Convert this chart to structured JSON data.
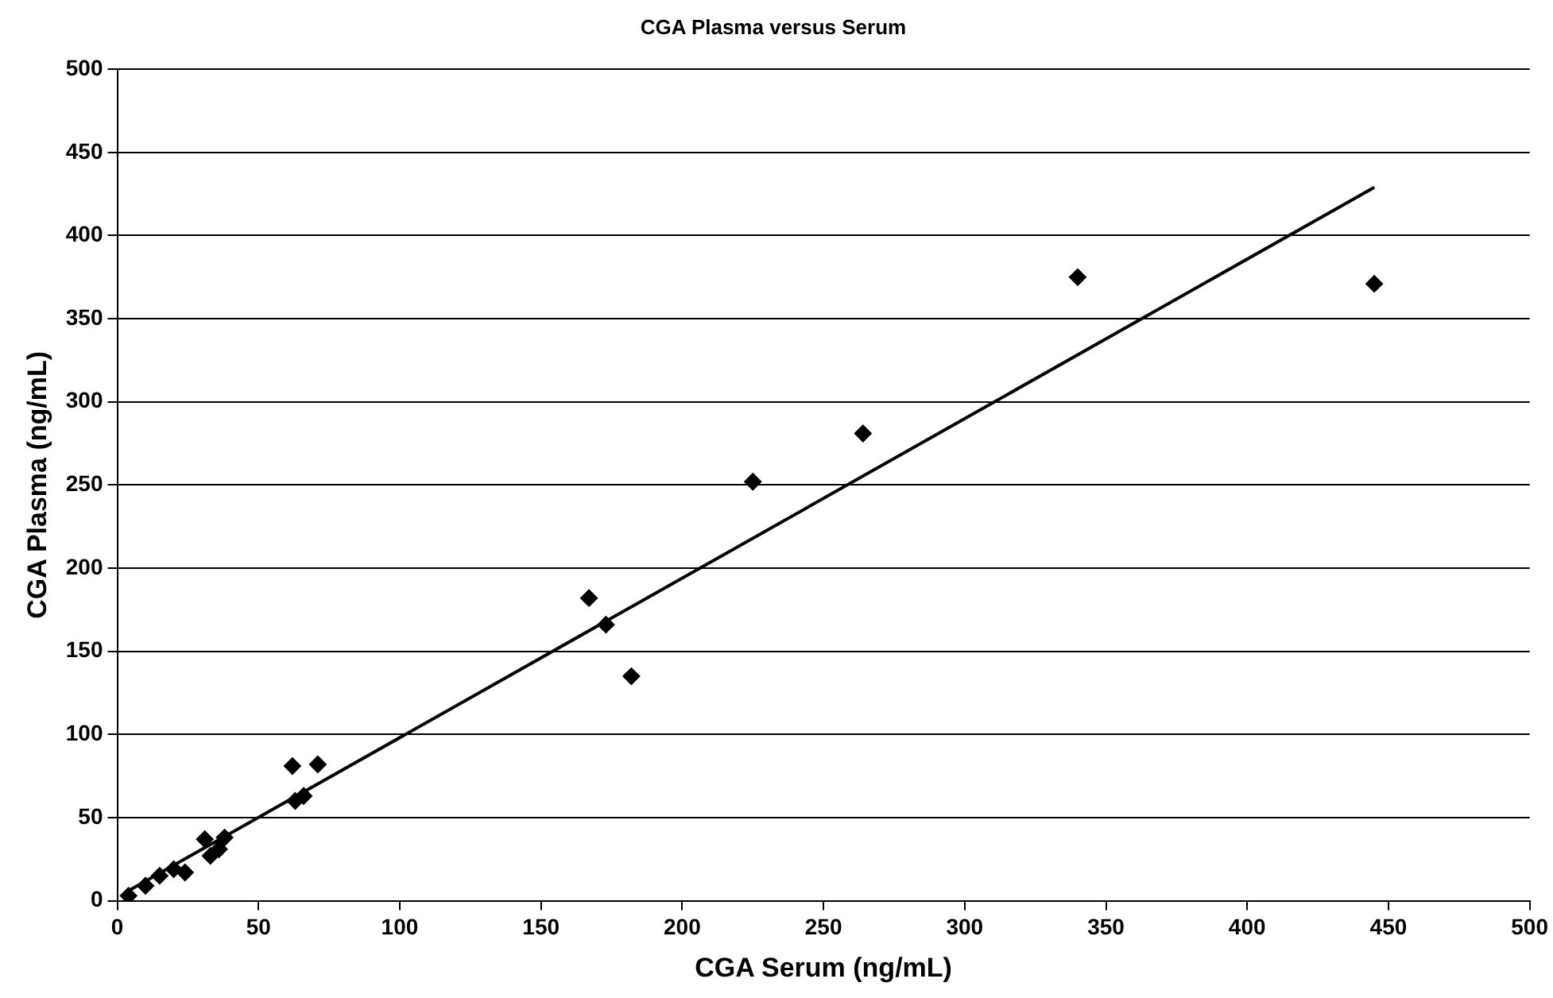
{
  "chart_data": {
    "type": "scatter",
    "title": "CGA Plasma versus Serum",
    "xlabel": "CGA Serum (ng/mL)",
    "ylabel": "CGA Plasma (ng/mL)",
    "xlim": [
      0,
      500
    ],
    "xticks": [
      0,
      50,
      100,
      150,
      200,
      250,
      300,
      350,
      400,
      450,
      500
    ],
    "ylim": [
      0,
      500
    ],
    "yticks": [
      0,
      50,
      100,
      150,
      200,
      250,
      300,
      350,
      400,
      450,
      500
    ],
    "grid": "y",
    "legend": false,
    "marker": "diamond",
    "series": [
      {
        "color": "#000000",
        "x": [
          4,
          10,
          15,
          20,
          24,
          31,
          33,
          36,
          38,
          62,
          63,
          66,
          71,
          167,
          173,
          182,
          225,
          264,
          340,
          445
        ],
        "values": [
          3,
          9,
          15,
          19,
          17,
          37,
          27,
          31,
          38,
          81,
          60,
          63,
          82,
          182,
          166,
          135,
          252,
          281,
          375,
          371
        ]
      },
      {
        "type": "line",
        "color": "#000000",
        "marker": "none",
        "line_style": "solid",
        "x": [
          4,
          445
        ],
        "values": [
          6,
          429
        ]
      }
    ]
  }
}
